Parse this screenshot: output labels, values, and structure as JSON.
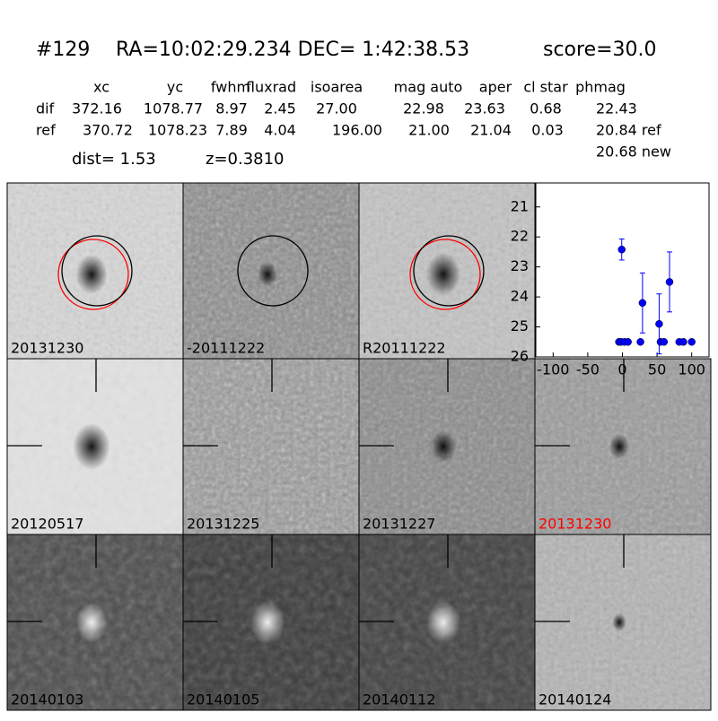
{
  "header": {
    "id": "#129",
    "coords": "RA=10:02:29.234 DEC= 1:42:38.53",
    "score": "score=30.0"
  },
  "table": {
    "columns": [
      "xc",
      "yc",
      "fwhm",
      "fluxrad",
      "isoarea",
      "mag auto",
      "aper",
      "cl star",
      "phmag"
    ],
    "rows": [
      [
        "dif",
        "372.16",
        "1078.77",
        "8.97",
        "2.45",
        "27.00",
        "22.98",
        "23.63",
        "0.68",
        "22.43"
      ],
      [
        "ref",
        "370.72",
        "1078.23",
        "7.89",
        "4.04",
        "196.00",
        "21.00",
        "21.04",
        "0.03",
        "20.84 ref"
      ]
    ],
    "extra": "20.68 new"
  },
  "dist": "dist=  1.53",
  "redshift": "z=0.3810",
  "panels": [
    {
      "label": "20131230"
    },
    {
      "label": "-20111222"
    },
    {
      "label": "R20111222"
    },
    {
      "label": "20120517"
    },
    {
      "label": "20131225"
    },
    {
      "label": "20131227"
    },
    {
      "label": "20131230",
      "color": "#ff0000"
    },
    {
      "label": "20140103"
    },
    {
      "label": "20140105"
    },
    {
      "label": "20140112"
    },
    {
      "label": "20140124"
    }
  ],
  "chart_data": {
    "type": "scatter",
    "color": "#0000ff",
    "x": [
      -1,
      -5,
      -2,
      3,
      8,
      26,
      29,
      53,
      55,
      60,
      68,
      82,
      88,
      100
    ],
    "series": [
      {
        "values": [
          22.42,
          25.5,
          25.5,
          25.5,
          25.5,
          25.5,
          24.2,
          24.9,
          25.5,
          25.5,
          23.5,
          25.5,
          25.5,
          25.5
        ],
        "errors": [
          0.35,
          null,
          null,
          null,
          null,
          null,
          1.0,
          1.0,
          null,
          null,
          1.0,
          null,
          null,
          null
        ]
      }
    ],
    "xlim": [
      -125,
      125
    ],
    "xticks": [
      -100,
      -50,
      0,
      50,
      100
    ],
    "ylim": [
      26,
      20.2
    ],
    "yticks": [
      21,
      22,
      23,
      24,
      25,
      26
    ]
  }
}
